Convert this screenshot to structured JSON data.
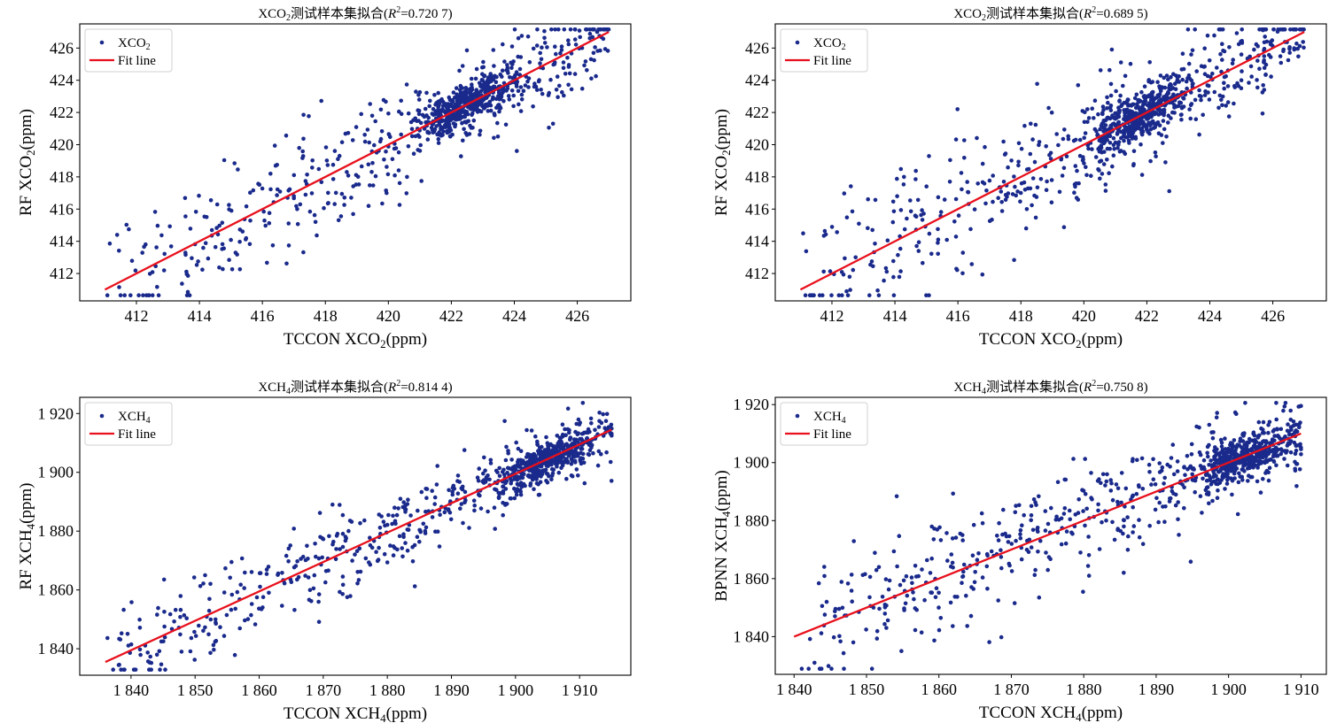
{
  "chart_data": [
    {
      "type": "scatter",
      "title": "XCO2测试样本集拟合(R2=0.720 7)",
      "title_parts": {
        "species": "XCO",
        "sub": "2",
        "mid": "测试样本集拟合(",
        "r": "R",
        "sup": "2",
        "value": "=0.720 7)"
      },
      "xlabel": {
        "pre": "TCCON XCO",
        "sub": "2",
        "post": "(ppm)"
      },
      "ylabel": {
        "pre": "RF XCO",
        "sub": "2",
        "post": "(ppm)"
      },
      "xlim": [
        410.2,
        427.7
      ],
      "ylim": [
        410.3,
        427.5
      ],
      "xticks": [
        412,
        414,
        416,
        418,
        420,
        422,
        424,
        426
      ],
      "xtick_labels": [
        "412",
        "414",
        "416",
        "418",
        "420",
        "422",
        "424",
        "426"
      ],
      "yticks": [
        412,
        414,
        416,
        418,
        420,
        422,
        424,
        426
      ],
      "ytick_labels": [
        "412",
        "414",
        "416",
        "418",
        "420",
        "422",
        "424",
        "426"
      ],
      "legend": [
        {
          "label_pre": "XCO",
          "label_sub": "2",
          "kind": "point"
        },
        {
          "label_pre": "Fit line",
          "label_sub": "",
          "kind": "line"
        }
      ],
      "legend_position": "top-left",
      "grid": false,
      "fit_line": {
        "x": [
          411.0,
          427.0
        ],
        "y": [
          411.0,
          427.0
        ]
      },
      "r2": 0.7207,
      "series": [
        {
          "name": "XCO2",
          "n_points": 900,
          "x_range": [
            411.0,
            427.0
          ],
          "cluster_center": 422.5,
          "noise_sd": 1.6,
          "seed": 11
        }
      ]
    },
    {
      "type": "scatter",
      "title": "XCO2测试样本集拟合(R2=0.689 5)",
      "title_parts": {
        "species": "XCO",
        "sub": "2",
        "mid": "测试样本集拟合(",
        "r": "R",
        "sup": "2",
        "value": "=0.689 5)"
      },
      "xlabel": {
        "pre": "TCCON XCO",
        "sub": "2",
        "post": "(ppm)"
      },
      "ylabel": {
        "pre": "RF XCO",
        "sub": "2",
        "post": "(ppm)"
      },
      "xlim": [
        410.2,
        427.7
      ],
      "ylim": [
        410.3,
        427.5
      ],
      "xticks": [
        412,
        414,
        416,
        418,
        420,
        422,
        424,
        426
      ],
      "xtick_labels": [
        "412",
        "414",
        "416",
        "418",
        "420",
        "422",
        "424",
        "426"
      ],
      "yticks": [
        412,
        414,
        416,
        418,
        420,
        422,
        424,
        426
      ],
      "ytick_labels": [
        "412",
        "414",
        "416",
        "418",
        "420",
        "422",
        "424",
        "426"
      ],
      "legend": [
        {
          "label_pre": "XCO",
          "label_sub": "2",
          "kind": "point"
        },
        {
          "label_pre": "Fit line",
          "label_sub": "",
          "kind": "line"
        }
      ],
      "legend_position": "top-left",
      "grid": false,
      "fit_line": {
        "x": [
          411.0,
          427.0
        ],
        "y": [
          411.0,
          427.0
        ]
      },
      "r2": 0.6895,
      "series": [
        {
          "name": "XCO2",
          "n_points": 950,
          "x_range": [
            411.0,
            427.0
          ],
          "cluster_center": 421.8,
          "noise_sd": 1.9,
          "seed": 23
        }
      ]
    },
    {
      "type": "scatter",
      "title": "XCH4测试样本集拟合(R2=0.814 4)",
      "title_parts": {
        "species": "XCH",
        "sub": "4",
        "mid": "测试样本集拟合(",
        "r": "R",
        "sup": "2",
        "value": "=0.814 4)"
      },
      "xlabel": {
        "pre": "TCCON XCH",
        "sub": "4",
        "post": "(ppm)"
      },
      "ylabel": {
        "pre": "RF XCH",
        "sub": "4",
        "post": "(ppm)"
      },
      "xlim": [
        1832,
        1918
      ],
      "ylim": [
        1831,
        1925.5
      ],
      "xticks": [
        1840,
        1850,
        1860,
        1870,
        1880,
        1890,
        1900,
        1910
      ],
      "xtick_labels": [
        "1 840",
        "1 850",
        "1 860",
        "1 870",
        "1 880",
        "1 890",
        "1 900",
        "1 910"
      ],
      "yticks": [
        1840,
        1860,
        1880,
        1900,
        1920
      ],
      "ytick_labels": [
        "1 840",
        "1 860",
        "1 880",
        "1 900",
        "1 920"
      ],
      "legend": [
        {
          "label_pre": "XCH",
          "label_sub": "4",
          "kind": "point"
        },
        {
          "label_pre": "Fit line",
          "label_sub": "",
          "kind": "line"
        }
      ],
      "legend_position": "top-left",
      "grid": false,
      "fit_line": {
        "x": [
          1836.0,
          1915.0
        ],
        "y": [
          1835.5,
          1914.5
        ]
      },
      "r2": 0.8144,
      "series": [
        {
          "name": "XCH4",
          "n_points": 900,
          "x_range": [
            1836.0,
            1915.0
          ],
          "cluster_center": 1905.0,
          "noise_sd": 7.0,
          "seed": 37
        }
      ]
    },
    {
      "type": "scatter",
      "title": "XCH4测试样本集拟合(R2=0.750 8)",
      "title_parts": {
        "species": "XCH",
        "sub": "4",
        "mid": "测试样本集拟合(",
        "r": "R",
        "sup": "2",
        "value": "=0.750 8)"
      },
      "xlabel": {
        "pre": "TCCON XCH",
        "sub": "4",
        "post": "(ppm)"
      },
      "ylabel": {
        "pre": "BPNN XCH",
        "sub": "4",
        "post": "(ppm)"
      },
      "xlim": [
        1837.4,
        1913.5
      ],
      "ylim": [
        1827,
        1922.5
      ],
      "xticks": [
        1840,
        1850,
        1860,
        1870,
        1880,
        1890,
        1900,
        1910
      ],
      "xtick_labels": [
        "1 840",
        "1 850",
        "1 860",
        "1 870",
        "1 880",
        "1 890",
        "1 900",
        "1 910"
      ],
      "yticks": [
        1840,
        1860,
        1880,
        1900,
        1920
      ],
      "ytick_labels": [
        "1 840",
        "1 860",
        "1 880",
        "1 900",
        "1 920"
      ],
      "legend": [
        {
          "label_pre": "XCH",
          "label_sub": "4",
          "kind": "point"
        },
        {
          "label_pre": "Fit line",
          "label_sub": "",
          "kind": "line"
        }
      ],
      "legend_position": "top-left",
      "grid": false,
      "fit_line": {
        "x": [
          1840.0,
          1910.0
        ],
        "y": [
          1840.0,
          1910.0
        ]
      },
      "r2": 0.7508,
      "series": [
        {
          "name": "XCH4",
          "n_points": 900,
          "x_range": [
            1840.0,
            1910.0
          ],
          "cluster_center": 1902.0,
          "noise_sd": 9.0,
          "seed": 53
        }
      ]
    }
  ],
  "colors": {
    "points": "#1a2a8c",
    "fit_line": "#e8101c",
    "axes": "#000000",
    "legend_border": "#d0d0d0"
  }
}
